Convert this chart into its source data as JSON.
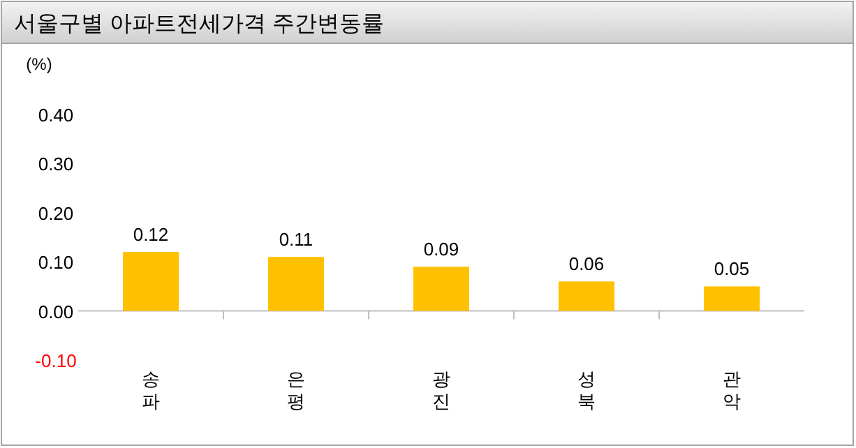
{
  "chart_data": {
    "type": "bar",
    "title": "서울구별 아파트전세가격 주간변동률",
    "ylabel": "(%)",
    "categories": [
      "송파",
      "은평",
      "광진",
      "성북",
      "관악"
    ],
    "values": [
      0.12,
      0.11,
      0.09,
      0.06,
      0.05
    ],
    "value_labels": [
      "0.12",
      "0.11",
      "0.09",
      "0.06",
      "0.05"
    ],
    "color": "#ffc000",
    "ylim": [
      -0.1,
      0.4
    ],
    "yticks": [
      {
        "value": -0.1,
        "label": "-0.10"
      },
      {
        "value": 0,
        "label": "0.00"
      },
      {
        "value": 0.1,
        "label": "0.10"
      },
      {
        "value": 0.2,
        "label": "0.20"
      },
      {
        "value": 0.3,
        "label": "0.30"
      },
      {
        "value": 0.4,
        "label": "0.40"
      }
    ],
    "orientation": "vertical"
  }
}
